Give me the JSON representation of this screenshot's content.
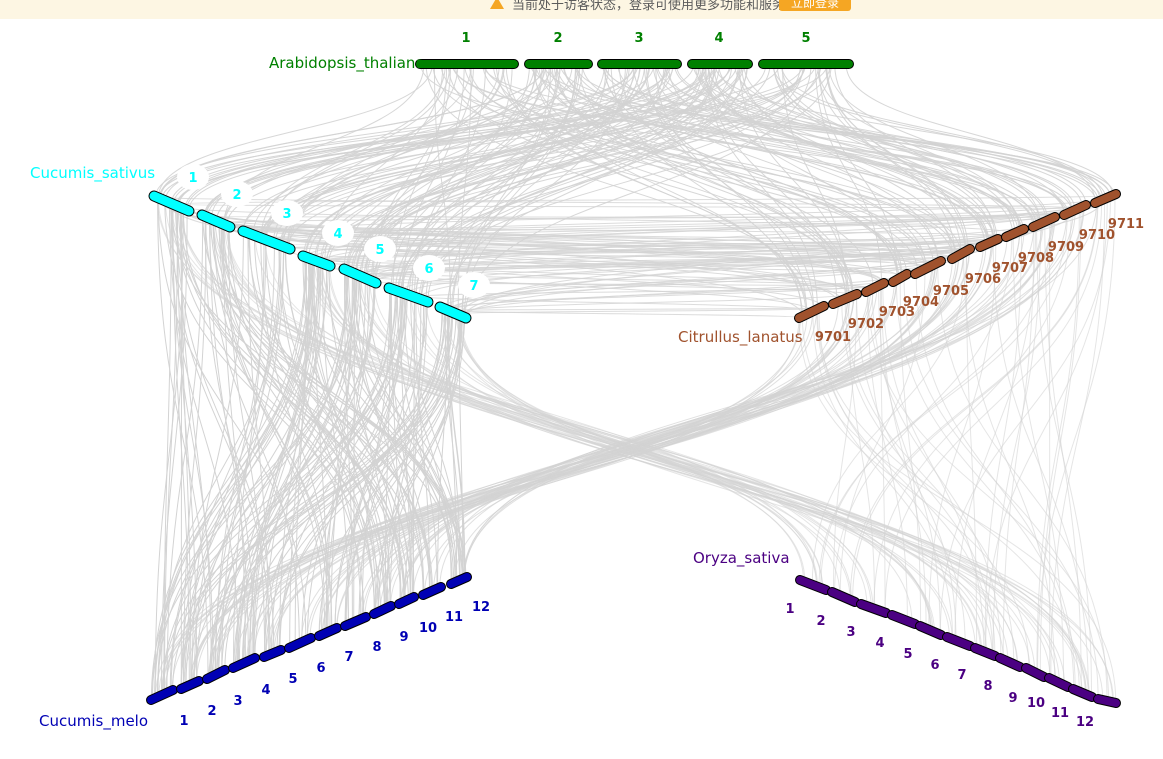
{
  "notice": {
    "text": "当前处于访客状态，登录可使用更多功能和服务",
    "login_label": "立即登录",
    "icon": "warning-icon"
  },
  "colors": {
    "arabidopsis": "#008000",
    "cucumis_sativus": "#00ffff",
    "citrullus": "#a0522d",
    "cucumis_melo": "#0000b4",
    "oryza": "#4b0082",
    "link": "#d3d3d3",
    "label_bg": "#ffffff"
  },
  "species": [
    {
      "id": "arabidopsis",
      "name": "Arabidopsis_thaliana",
      "chromosomes": [
        "1",
        "2",
        "3",
        "4",
        "5"
      ]
    },
    {
      "id": "cucumis_sativus",
      "name": "Cucumis_sativus",
      "chromosomes": [
        "1",
        "2",
        "3",
        "4",
        "5",
        "6",
        "7"
      ]
    },
    {
      "id": "citrullus",
      "name": "Citrullus_lanatus",
      "chromosomes": [
        "9701",
        "9702",
        "9703",
        "9704",
        "9705",
        "9706",
        "9707",
        "9708",
        "9709",
        "9710",
        "9711"
      ]
    },
    {
      "id": "cucumis_melo",
      "name": "Cucumis_melo",
      "chromosomes": [
        "1",
        "2",
        "3",
        "4",
        "5",
        "6",
        "7",
        "8",
        "9",
        "10",
        "11",
        "12"
      ]
    },
    {
      "id": "oryza",
      "name": "Oryza_sativa",
      "chromosomes": [
        "1",
        "2",
        "3",
        "4",
        "5",
        "6",
        "7",
        "8",
        "9",
        "10",
        "11",
        "12"
      ]
    }
  ]
}
